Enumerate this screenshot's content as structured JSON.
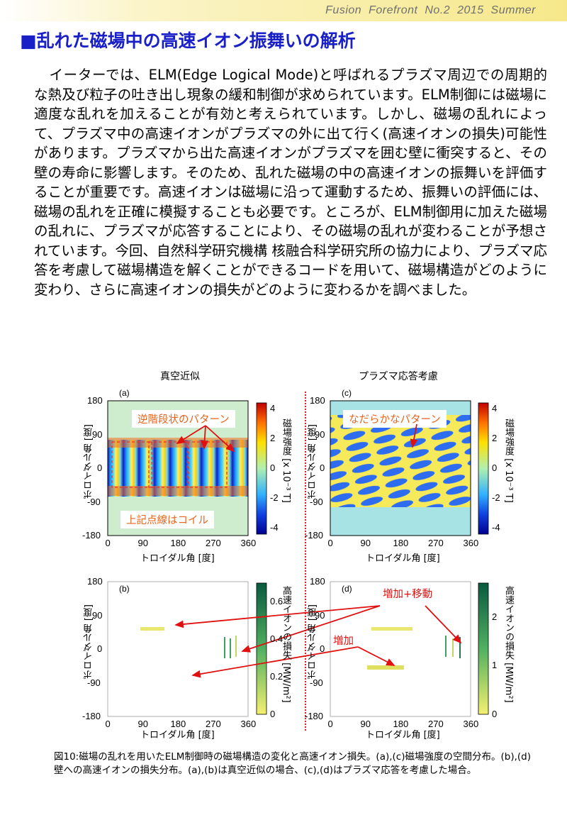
{
  "header": {
    "text": "Fusion  Forefront  No.2  2015  Summer"
  },
  "section_title": "■乱れた磁場中の高速イオン振舞いの解析",
  "body_text": "イーターでは、ELM(Edge Logical Mode)と呼ばれるプラズマ周辺での周期的な熱及び粒子の吐き出し現象の緩和制御が求められています。ELM制御には磁場に適度な乱れを加えることが有効と考えられています。しかし、磁場の乱れによって、プラズマ中の高速イオンがプラズマの外に出て行く(高速イオンの損失)可能性があります。プラズマから出た高速イオンがプラズマを囲む壁に衝突すると、その壁の寿命に影響します。そのため、乱れた磁場の中の高速イオンの振舞いを評価することが重要です。高速イオンは磁場に沿って運動するため、振舞いの評価には、磁場の乱れを正確に模擬することも必要です。ところが、ELM制御用に加えた磁場の乱れに、プラズマが応答することにより、その磁場の乱れが変わることが予想されています。今回、自然科学研究機構 核融合科学研究所の協力により、プラズマ応答を考慮して磁場構造を解くことができるコードを用いて、磁場構造がどのように変わり、さらに高速イオンの損失がどのように変わるかを調べました。",
  "figure": {
    "left_heading": "真空近似",
    "right_heading": "プラズマ応答考慮",
    "y_axis_label": "ポロイダル角 [度]",
    "x_axis_label": "トロイダル角 [度]",
    "x_ticks": [
      "0",
      "90",
      "180",
      "270",
      "360"
    ],
    "y_ticks": [
      "180",
      "90",
      "0",
      "-90",
      "-180"
    ],
    "field_colorbar": {
      "label": "磁場強度 [x 10⁻³ T]",
      "ticks": [
        "4",
        "2",
        "0",
        "-2",
        "-4"
      ]
    },
    "loss_colorbar_b": {
      "label": "高速イオンの損失 [MW/m²]",
      "ticks": [
        "0.6",
        "0.4",
        "0.2",
        "0"
      ]
    },
    "loss_colorbar_d": {
      "label": "高速イオンの損失 [MW/m²]",
      "ticks": [
        "2",
        "1",
        "0"
      ]
    },
    "panels": [
      {
        "id": "a",
        "label": "(a)"
      },
      {
        "id": "b",
        "label": "(b)"
      },
      {
        "id": "c",
        "label": "(c)"
      },
      {
        "id": "d",
        "label": "(d)"
      }
    ],
    "callouts": {
      "a_pattern": "逆階段状のパターン",
      "a_coil": "上記点線はコイル",
      "c_pattern": "なだらかなパターン",
      "d_increase_move": "増加+移動",
      "d_increase": "増加"
    },
    "colors": {
      "title_blue": "#1a20c8",
      "callout_orange": "#e8641e",
      "arrow_red": "#e01010"
    }
  },
  "caption": "図10:磁場の乱れを用いたELM制御時の磁場構造の変化と高速イオン損失。(a),(c)磁場強度の空間分布。(b),(d) 壁への高速イオンの損失分布。(a),(b)は真空近似の場合、(c),(d)はプラズマ応答を考慮した場合。"
}
